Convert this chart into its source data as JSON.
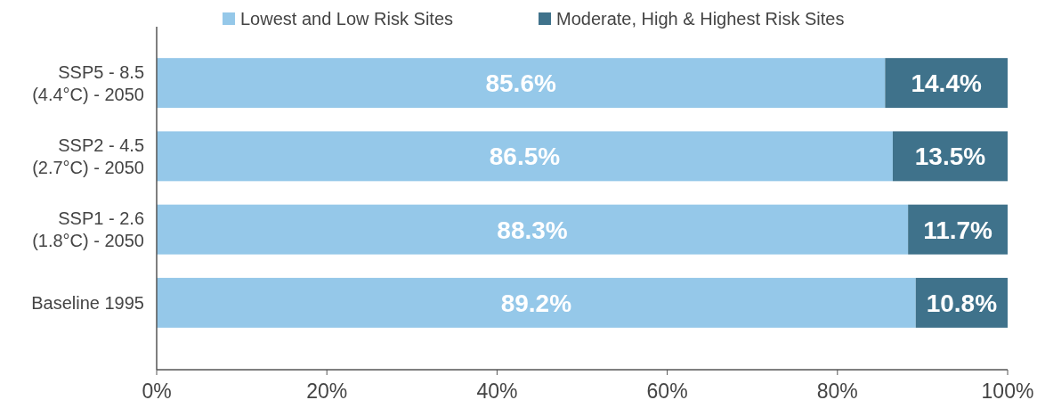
{
  "chart_data": {
    "type": "bar",
    "orientation": "horizontal",
    "stacked": true,
    "categories": [
      "SSP5 - 8.5\n(4.4°C) - 2050",
      "SSP2 - 4.5\n(2.7°C) - 2050",
      "SSP1 - 2.6\n(1.8°C) - 2050",
      "Baseline 1995"
    ],
    "series": [
      {
        "name": "Lowest and Low Risk Sites",
        "color": "#95c8e9",
        "values": [
          85.6,
          86.5,
          88.3,
          89.2
        ],
        "value_labels": [
          "85.6%",
          "86.5%",
          "88.3%",
          "89.2%"
        ]
      },
      {
        "name": "Moderate, High & Highest Risk Sites",
        "color": "#3f728b",
        "values": [
          14.4,
          13.5,
          11.7,
          10.8
        ],
        "value_labels": [
          "14.4%",
          "13.5%",
          "11.7%",
          "10.8%"
        ]
      }
    ],
    "xlim": [
      0,
      100
    ],
    "xticks": [
      {
        "value": 0,
        "label": "0%"
      },
      {
        "value": 20,
        "label": "20%"
      },
      {
        "value": 40,
        "label": "40%"
      },
      {
        "value": 60,
        "label": "60%"
      },
      {
        "value": 80,
        "label": "80%"
      },
      {
        "value": 100,
        "label": "100%"
      }
    ],
    "legend": "top",
    "grid": false
  }
}
